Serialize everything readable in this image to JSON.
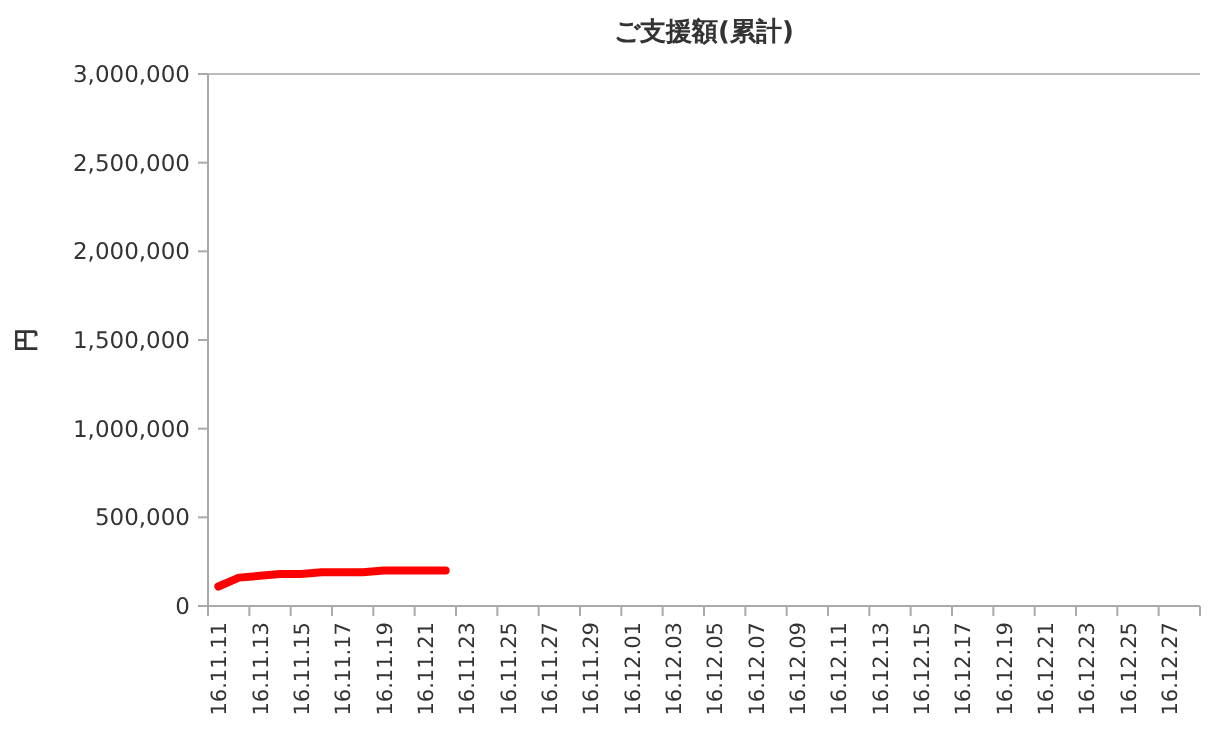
{
  "chart_data": {
    "type": "line",
    "title": "ご支援額(累計)",
    "ylabel": "円",
    "categories": [
      "16.11.11",
      null,
      "16.11.13",
      null,
      "16.11.15",
      null,
      "16.11.17",
      null,
      "16.11.19",
      null,
      "16.11.21",
      null,
      "16.11.23",
      null,
      "16.11.25",
      null,
      "16.11.27",
      null,
      "16.11.29",
      null,
      "16.12.01",
      null,
      "16.12.03",
      null,
      "16.12.05",
      null,
      "16.12.07",
      null,
      "16.12.09",
      null,
      "16.12.11",
      null,
      "16.12.13",
      null,
      "16.12.15",
      null,
      "16.12.17",
      null,
      "16.12.19",
      null,
      "16.12.21",
      null,
      "16.12.23",
      null,
      "16.12.25",
      null,
      "16.12.27",
      null
    ],
    "series": [
      {
        "color": "#ff0000",
        "values": [
          110000,
          160000,
          170000,
          180000,
          180000,
          190000,
          190000,
          190000,
          200000,
          200000,
          200000,
          200000,
          null,
          null,
          null,
          null,
          null,
          null,
          null,
          null,
          null,
          null,
          null,
          null,
          null,
          null,
          null,
          null,
          null,
          null,
          null,
          null,
          null,
          null,
          null,
          null,
          null,
          null,
          null,
          null,
          null,
          null,
          null,
          null,
          null,
          null,
          null,
          null
        ]
      }
    ],
    "ylim": [
      0,
      3000000
    ],
    "yticks": [
      0,
      {
        "value": 500000,
        "label": "500,000"
      },
      {
        "value": 1000000,
        "label": "1,000,000"
      },
      {
        "value": 1500000,
        "label": "1,500,000"
      },
      {
        "value": 2000000,
        "label": "2,000,000"
      },
      {
        "value": 2500000,
        "label": "2,500,000"
      },
      {
        "value": 3000000,
        "label": "3,000,000"
      }
    ],
    "grid": false,
    "marker": "none",
    "line_style": "solid"
  }
}
